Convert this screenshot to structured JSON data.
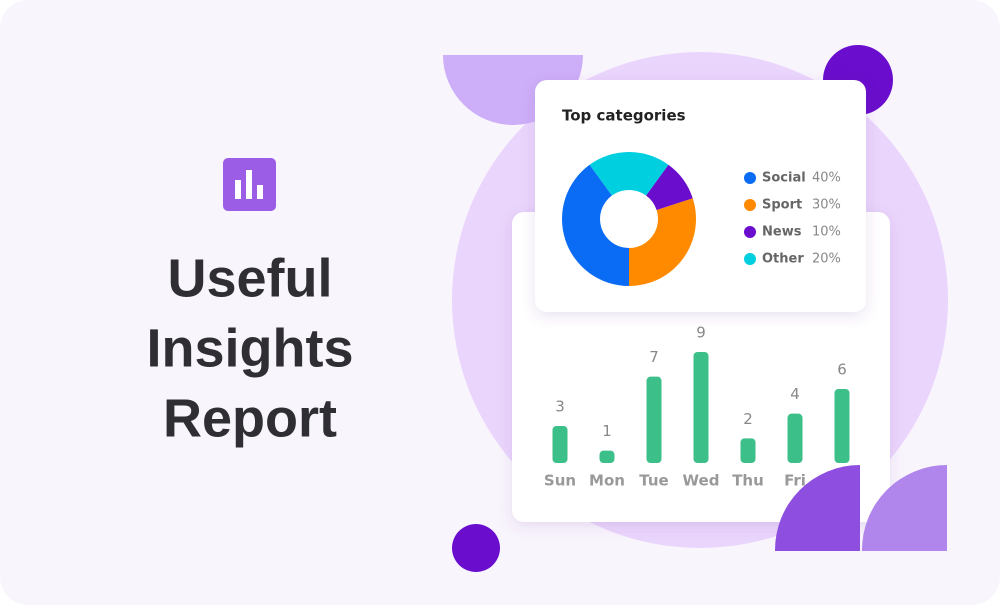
{
  "heading": {
    "lines": [
      "Useful",
      "Insights",
      "Report"
    ]
  },
  "chart_data": [
    {
      "type": "pie",
      "title": "Top categories",
      "categories": [
        "Social",
        "Sport",
        "News",
        "Other"
      ],
      "values": [
        40,
        30,
        10,
        20
      ],
      "value_labels": [
        "40%",
        "30%",
        "10%",
        "20%"
      ],
      "colors": [
        "#0a6cf5",
        "#ff8a00",
        "#6a0dcc",
        "#00cfe0"
      ]
    },
    {
      "type": "bar",
      "categories": [
        "Sun",
        "Mon",
        "Tue",
        "Wed",
        "Thu",
        "Fri",
        null
      ],
      "values": [
        3,
        1,
        7,
        9,
        2,
        4,
        6
      ],
      "color": "#3dbf8a"
    }
  ]
}
